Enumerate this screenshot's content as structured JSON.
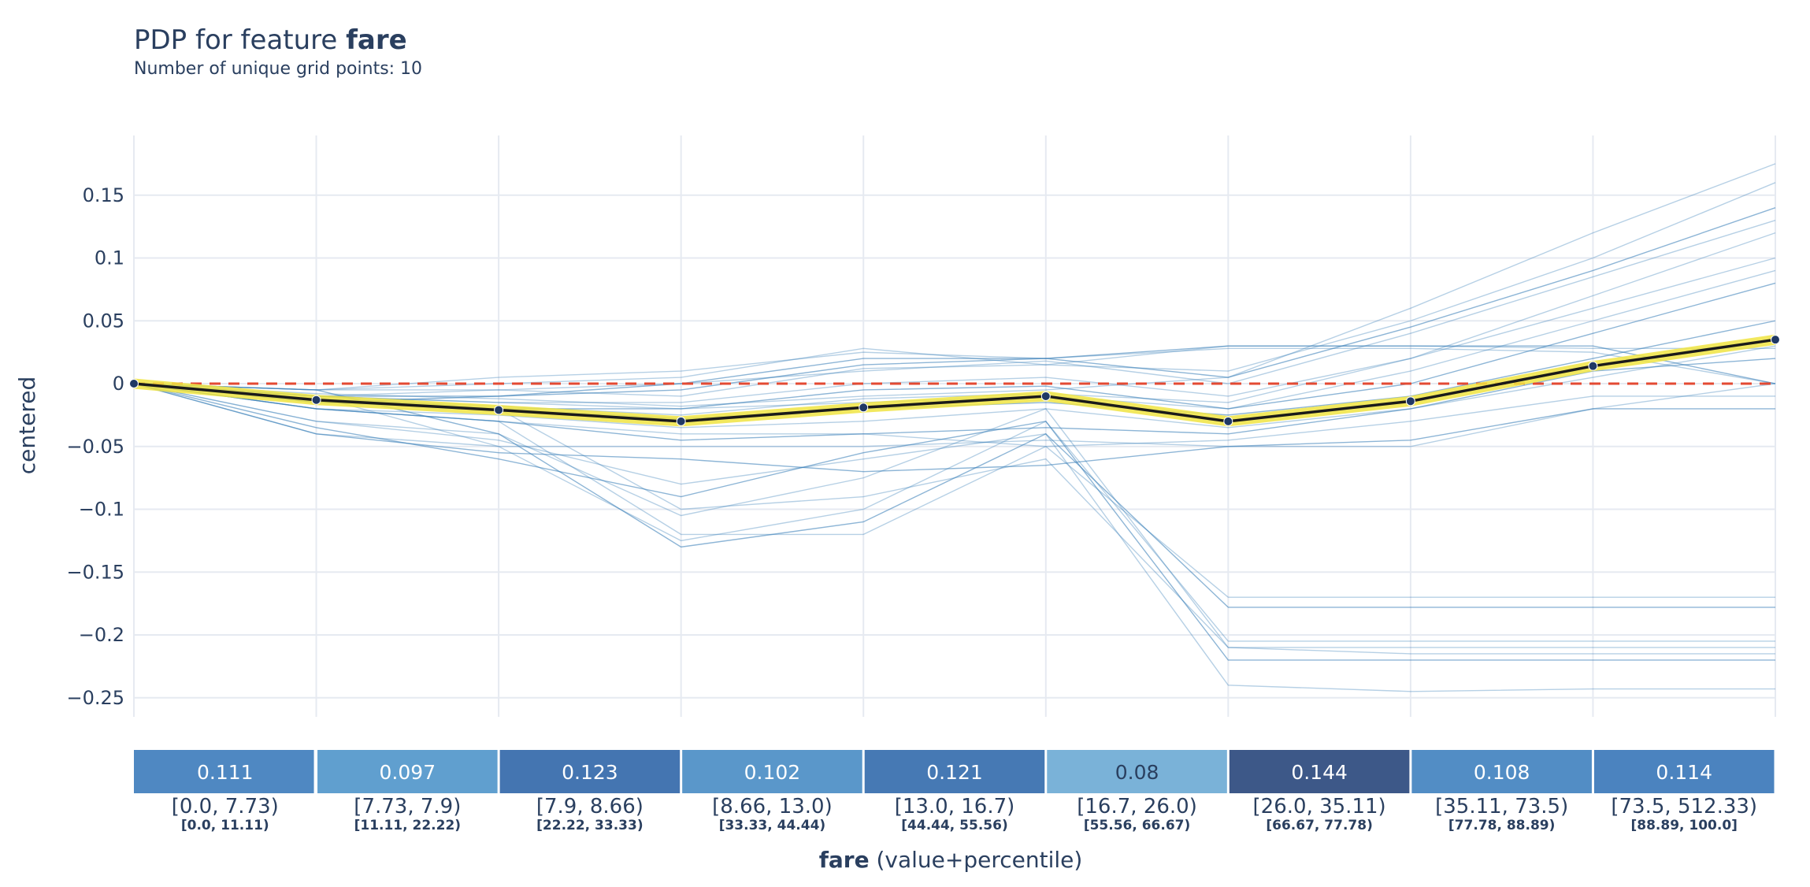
{
  "chart_data": {
    "type": "line",
    "title_prefix": "PDP for feature ",
    "title_feature": "fare",
    "subtitle": "Number of unique grid points: 10",
    "ylabel": "centered",
    "xlabel_feature": "fare",
    "xlabel_suffix": " (value+percentile)",
    "ylim": [
      -0.265,
      0.197
    ],
    "yticks": [
      0.15,
      0.1,
      0.05,
      0,
      -0.05,
      -0.1,
      -0.15,
      -0.2,
      -0.25
    ],
    "ytick_labels": [
      "0.15",
      "0.1",
      "0.05",
      "0",
      "−0.05",
      "−0.1",
      "−0.15",
      "−0.2",
      "−0.25"
    ],
    "grid_points": 10,
    "pdp": [
      0,
      -0.013,
      -0.021,
      -0.03,
      -0.019,
      -0.01,
      -0.03,
      -0.014,
      0.014,
      0.035
    ],
    "reference_line": 0,
    "ice_lines": [
      [
        0,
        -0.04,
        -0.055,
        -0.06,
        -0.07,
        -0.065,
        -0.05,
        -0.045,
        -0.02,
        -0.02
      ],
      [
        0,
        -0.03,
        -0.04,
        -0.105,
        -0.075,
        -0.02,
        -0.21,
        -0.21,
        -0.21,
        -0.21
      ],
      [
        0,
        -0.01,
        -0.05,
        -0.125,
        -0.1,
        -0.03,
        -0.205,
        -0.205,
        -0.205,
        -0.205
      ],
      [
        0,
        -0.005,
        -0.04,
        -0.13,
        -0.11,
        -0.04,
        -0.178,
        -0.178,
        -0.178,
        -0.178
      ],
      [
        0,
        -0.02,
        -0.03,
        -0.12,
        -0.12,
        -0.05,
        -0.17,
        -0.17,
        -0.17,
        -0.17
      ],
      [
        0,
        -0.01,
        -0.02,
        -0.1,
        -0.09,
        -0.06,
        -0.21,
        -0.215,
        -0.215,
        -0.215
      ],
      [
        0,
        -0.015,
        -0.01,
        0.0,
        0.02,
        0.02,
        0.03,
        0.03,
        0.03,
        0.0
      ],
      [
        0,
        -0.005,
        0.005,
        0.01,
        0.025,
        0.02,
        0.028,
        0.028,
        0.025,
        0.0
      ],
      [
        0,
        -0.01,
        -0.005,
        -0.01,
        0.012,
        0.015,
        0.01,
        0.05,
        0.1,
        0.16
      ],
      [
        0,
        -0.01,
        -0.01,
        -0.005,
        0.015,
        0.02,
        0.005,
        0.045,
        0.09,
        0.14
      ],
      [
        0,
        -0.005,
        -0.005,
        0.0,
        0.01,
        0.018,
        0.0,
        0.04,
        0.085,
        0.13
      ],
      [
        0,
        -0.01,
        -0.015,
        -0.015,
        0.0,
        0.005,
        -0.01,
        0.02,
        0.06,
        0.1
      ],
      [
        0,
        -0.012,
        -0.02,
        -0.02,
        -0.005,
        -0.002,
        -0.02,
        0.0,
        0.04,
        0.08
      ],
      [
        0,
        -0.04,
        -0.05,
        -0.05,
        -0.05,
        -0.045,
        -0.05,
        -0.05,
        -0.02,
        0.0
      ],
      [
        0,
        -0.02,
        -0.025,
        -0.035,
        -0.03,
        -0.02,
        -0.035,
        -0.02,
        0.005,
        0.03
      ],
      [
        0,
        -0.015,
        -0.02,
        -0.028,
        -0.02,
        -0.015,
        -0.025,
        -0.01,
        0.02,
        0.05
      ],
      [
        0,
        -0.008,
        -0.012,
        -0.018,
        -0.01,
        -0.005,
        0.005,
        0.06,
        0.12,
        0.175
      ],
      [
        0,
        -0.03,
        -0.045,
        -0.08,
        -0.06,
        -0.04,
        -0.24,
        -0.245,
        -0.243,
        -0.243
      ],
      [
        0,
        -0.035,
        -0.06,
        -0.09,
        -0.055,
        -0.03,
        -0.22,
        -0.22,
        -0.22,
        -0.22
      ],
      [
        0,
        -0.02,
        -0.03,
        -0.04,
        -0.04,
        -0.05,
        -0.045,
        -0.03,
        -0.01,
        -0.01
      ],
      [
        0,
        -0.01,
        -0.015,
        -0.02,
        -0.015,
        -0.01,
        -0.02,
        0.01,
        0.05,
        0.09
      ],
      [
        0,
        -0.02,
        -0.03,
        -0.045,
        -0.04,
        -0.035,
        -0.04,
        -0.02,
        0.01,
        0.02
      ],
      [
        0,
        -0.005,
        0.0,
        0.005,
        0.028,
        0.015,
        0.03,
        0.03,
        0.028,
        0.028
      ],
      [
        0,
        -0.012,
        -0.018,
        -0.025,
        -0.012,
        -0.008,
        -0.015,
        0.02,
        0.07,
        0.12
      ]
    ],
    "bins": [
      {
        "value": "0.111",
        "range": "[0.0, 7.73)",
        "percentile": "[0.0, 11.11)",
        "color": "#4f88c2",
        "text_color": "#ffffff"
      },
      {
        "value": "0.097",
        "range": "[7.73, 7.9)",
        "percentile": "[11.11, 22.22)",
        "color": "#609fcf",
        "text_color": "#ffffff"
      },
      {
        "value": "0.123",
        "range": "[7.9, 8.66)",
        "percentile": "[22.22, 33.33)",
        "color": "#4475b1",
        "text_color": "#ffffff"
      },
      {
        "value": "0.102",
        "range": "[8.66, 13.0)",
        "percentile": "[33.33, 44.44)",
        "color": "#5a97ca",
        "text_color": "#ffffff"
      },
      {
        "value": "0.121",
        "range": "[13.0, 16.7)",
        "percentile": "[44.44, 55.56)",
        "color": "#4679b4",
        "text_color": "#ffffff"
      },
      {
        "value": "0.08",
        "range": "[16.7, 26.0)",
        "percentile": "[55.56, 66.67)",
        "color": "#7ab2d8",
        "text_color": "#2a3f5f"
      },
      {
        "value": "0.144",
        "range": "[26.0, 35.11)",
        "percentile": "[66.67, 77.78)",
        "color": "#3d5888",
        "text_color": "#ffffff"
      },
      {
        "value": "0.108",
        "range": "[35.11, 73.5)",
        "percentile": "[77.78, 88.89)",
        "color": "#528dc5",
        "text_color": "#ffffff"
      },
      {
        "value": "0.114",
        "range": "[73.5, 512.33)",
        "percentile": "[88.89, 100.0]",
        "color": "#4b83bf",
        "text_color": "#ffffff"
      }
    ],
    "colors": {
      "pdp_line": "#1a1a1a",
      "pdp_band": "#f0e442",
      "pdp_marker": "#1f3864",
      "ice_line": "#2f78b4",
      "reference": "#e34a33",
      "grid": "#e6eaf1",
      "text": "#2a3f5f"
    }
  }
}
